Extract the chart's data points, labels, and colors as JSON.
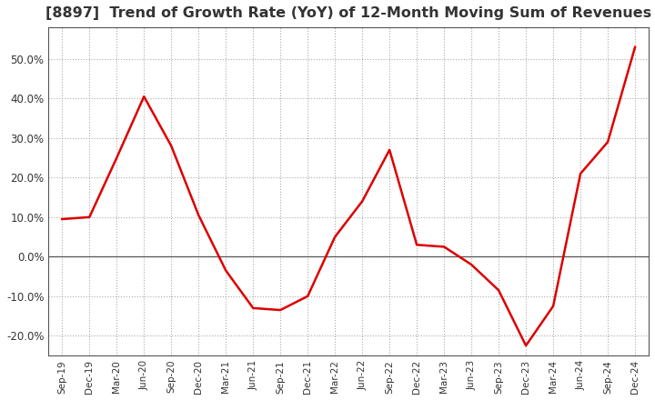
{
  "title": "[8897]  Trend of Growth Rate (YoY) of 12-Month Moving Sum of Revenues",
  "title_fontsize": 11.5,
  "line_color": "#dd0000",
  "background_color": "#ffffff",
  "grid_color": "#aaaaaa",
  "plot_bg_color": "#ffffff",
  "x_labels": [
    "Sep-19",
    "Dec-19",
    "Mar-20",
    "Jun-20",
    "Sep-20",
    "Dec-20",
    "Mar-21",
    "Jun-21",
    "Sep-21",
    "Dec-21",
    "Mar-22",
    "Jun-22",
    "Sep-22",
    "Dec-22",
    "Mar-23",
    "Jun-23",
    "Sep-23",
    "Dec-23",
    "Mar-24",
    "Jun-24",
    "Sep-24",
    "Dec-24"
  ],
  "y_values": [
    9.5,
    10.0,
    25.0,
    40.5,
    28.0,
    10.5,
    -3.5,
    -13.0,
    -13.5,
    -10.0,
    5.0,
    14.0,
    27.0,
    3.0,
    2.5,
    -2.0,
    -8.5,
    -22.5,
    -12.5,
    21.0,
    29.0,
    53.0
  ],
  "ylim": [
    -25,
    58
  ],
  "yticks": [
    -20.0,
    -10.0,
    0.0,
    10.0,
    20.0,
    30.0,
    40.0,
    50.0
  ]
}
